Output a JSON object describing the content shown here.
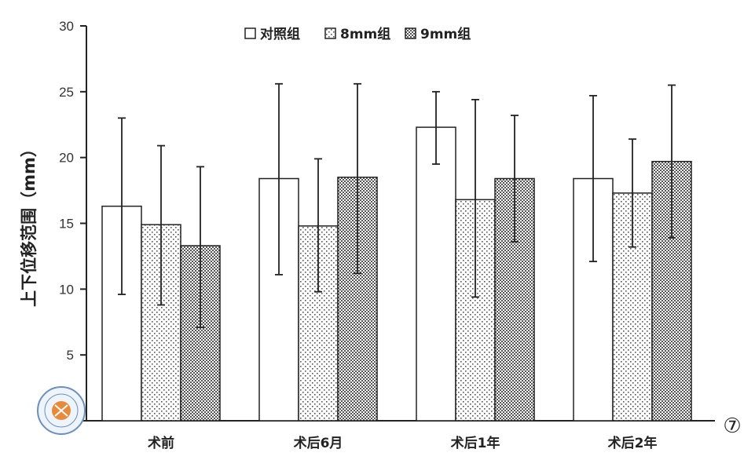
{
  "chart_data": {
    "type": "bar",
    "title": "",
    "xlabel": "",
    "ylabel": "上下位移范围（mm）",
    "ylim": [
      0,
      30
    ],
    "yticks": [
      0,
      5,
      10,
      15,
      20,
      25,
      30
    ],
    "grid": false,
    "legend_position": "top-center",
    "categories": [
      "术前",
      "术后6月",
      "术后1年",
      "术后2年"
    ],
    "series": [
      {
        "name": "对照组",
        "pattern": "plain",
        "values": [
          16.3,
          18.4,
          22.3,
          18.4
        ],
        "err_low": [
          9.6,
          11.1,
          19.5,
          12.1
        ],
        "err_high": [
          23.0,
          25.6,
          25.0,
          24.7
        ]
      },
      {
        "name": "8mm组",
        "pattern": "dots",
        "values": [
          14.9,
          14.8,
          16.8,
          17.3
        ],
        "err_low": [
          8.8,
          9.8,
          9.4,
          13.2
        ],
        "err_high": [
          20.9,
          19.9,
          24.4,
          21.4
        ]
      },
      {
        "name": "9mm组",
        "pattern": "crosshatch",
        "values": [
          13.3,
          18.5,
          18.4,
          19.7
        ],
        "err_low": [
          7.1,
          11.2,
          13.6,
          13.9
        ],
        "err_high": [
          19.3,
          25.6,
          23.2,
          25.5
        ]
      }
    ]
  },
  "badge": "⑦",
  "colors": {
    "axis": "#222222",
    "bar_stroke": "#222222",
    "bar_fill": "#ffffff",
    "pattern": "#444444"
  }
}
